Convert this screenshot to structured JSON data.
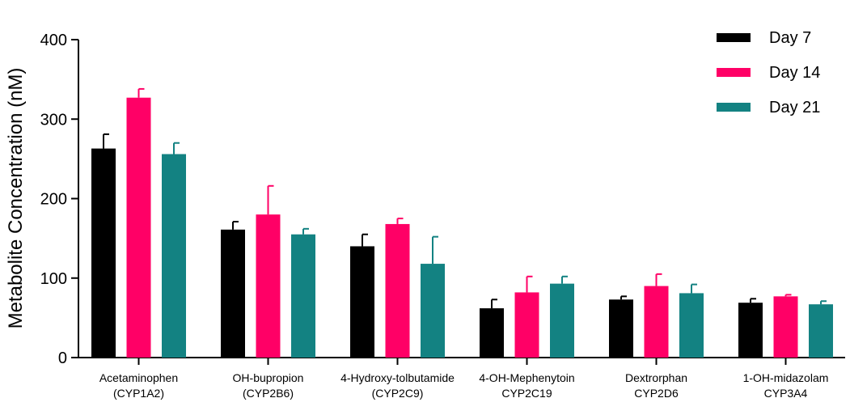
{
  "chart_data": {
    "type": "bar",
    "title": "",
    "xlabel": "",
    "ylabel": "Metabolite Concentration (nM)",
    "ylim": [
      0,
      400
    ],
    "yticks": [
      0,
      100,
      200,
      300,
      400
    ],
    "grid": false,
    "legend_position": "top-right",
    "categories": [
      [
        "Acetaminophen",
        "(CYP1A2)"
      ],
      [
        "OH-bupropion",
        "(CYP2B6)"
      ],
      [
        "4-Hydroxy-tolbutamide",
        "(CYP2C9)"
      ],
      [
        "4-OH-Mephenytoin",
        "CYP2C19"
      ],
      [
        "Dextrorphan",
        "CYP2D6"
      ],
      [
        "1-OH-midazolam",
        "CYP3A4"
      ]
    ],
    "series": [
      {
        "name": "Day 7",
        "color": "#000000",
        "values": [
          263,
          161,
          140,
          62,
          73,
          69
        ],
        "errors": [
          18,
          10,
          15,
          11,
          4,
          5
        ]
      },
      {
        "name": "Day 14",
        "color": "#ff0066",
        "values": [
          327,
          180,
          168,
          82,
          90,
          77
        ],
        "errors": [
          11,
          36,
          7,
          20,
          15,
          2
        ]
      },
      {
        "name": "Day 21",
        "color": "#138282",
        "values": [
          256,
          155,
          118,
          93,
          81,
          67
        ],
        "errors": [
          14,
          7,
          34,
          9,
          11,
          4
        ]
      }
    ]
  }
}
